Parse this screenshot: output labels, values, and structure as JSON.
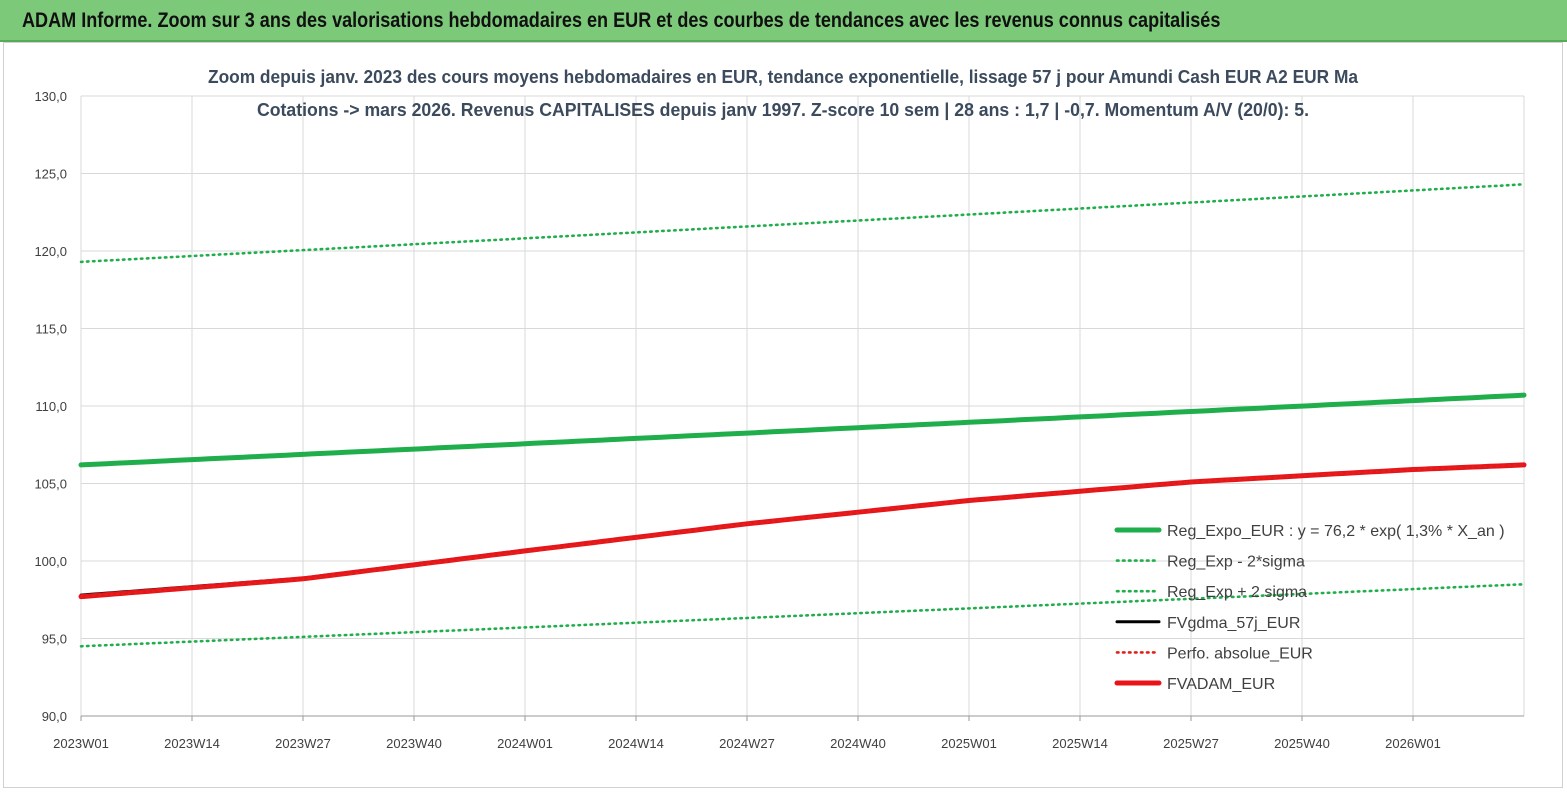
{
  "banner": {
    "title": "ADAM Informe. Zoom sur 3 ans des valorisations hebdomadaires en EUR et des courbes de tendances avec les revenus connus capitalisés"
  },
  "colors": {
    "banner_bg": "#7dc97a",
    "reg_expo": "#1fae4b",
    "band": "#1fae4b",
    "fvgdma": "#000000",
    "perfo": "#e0201b",
    "fvadam": "#e8141a",
    "grid": "#d9d9d9"
  },
  "chart_data": {
    "type": "line",
    "title_line1": "Zoom depuis janv. 2023 des cours moyens hebdomadaires en EUR, tendance exponentielle, lissage 57 j pour Amundi Cash EUR A2 EUR Ma",
    "title_line2": "Cotations -> mars 2026. Revenus CAPITALISES depuis janv 1997. Z-score 10 sem | 28 ans : 1,7 | -0,7. Momentum A/V (20/0): 5.",
    "xlabel": "",
    "ylabel": "",
    "ylim": [
      90,
      130
    ],
    "yticks": [
      "90,0",
      "95,0",
      "100,0",
      "105,0",
      "110,0",
      "115,0",
      "120,0",
      "125,0",
      "130,0"
    ],
    "xticks": [
      "2023W01",
      "2023W14",
      "2023W27",
      "2023W40",
      "2024W01",
      "2024W14",
      "2024W27",
      "2024W40",
      "2025W01",
      "2025W14",
      "2025W27",
      "2025W40",
      "2026W01"
    ],
    "x_weeks_total": 169,
    "grid": true,
    "legend_position": "right",
    "series": [
      {
        "name": "Reg_Expo_EUR : y = 76,2 * exp( 1,3% *  X_an )",
        "style": "solid-thick",
        "color": "#1fae4b",
        "start": 106.2,
        "end": 110.7
      },
      {
        "name": "Reg_Exp - 2*sigma",
        "style": "dotted",
        "color": "#1fae4b",
        "start": 94.5,
        "end": 98.5
      },
      {
        "name": "Reg_Exp + 2 sigma",
        "style": "dotted",
        "color": "#1fae4b",
        "start": 119.3,
        "end": 124.3
      },
      {
        "name": "FVgdma_57j_EUR",
        "style": "solid",
        "color": "#000000",
        "points": [
          [
            0,
            97.8
          ],
          [
            26,
            98.9
          ],
          [
            52,
            100.7
          ],
          [
            78,
            102.4
          ],
          [
            104,
            103.9
          ],
          [
            130,
            105.1
          ],
          [
            156,
            105.9
          ],
          [
            169,
            106.2
          ]
        ]
      },
      {
        "name": "Perfo. absolue_EUR",
        "style": "dotted",
        "color": "#e0201b",
        "points": [
          [
            0,
            97.7
          ],
          [
            26,
            98.8
          ],
          [
            52,
            100.6
          ],
          [
            78,
            102.4
          ],
          [
            104,
            103.9
          ],
          [
            130,
            105.1
          ],
          [
            156,
            105.9
          ],
          [
            169,
            106.2
          ]
        ]
      },
      {
        "name": "FVADAM_EUR",
        "style": "solid-thick",
        "color": "#e8141a",
        "points": [
          [
            0,
            97.7
          ],
          [
            26,
            98.85
          ],
          [
            52,
            100.65
          ],
          [
            78,
            102.4
          ],
          [
            104,
            103.9
          ],
          [
            130,
            105.1
          ],
          [
            156,
            105.9
          ],
          [
            169,
            106.2
          ]
        ]
      }
    ]
  }
}
